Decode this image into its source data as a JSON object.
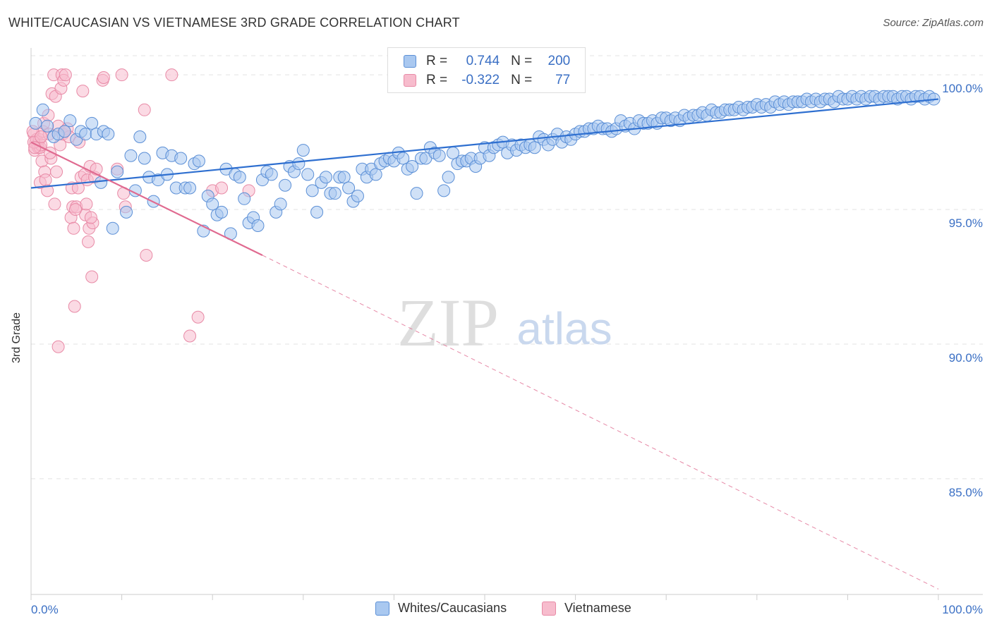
{
  "title": "WHITE/CAUCASIAN VS VIETNAMESE 3RD GRADE CORRELATION CHART",
  "source": "Source: ZipAtlas.com",
  "watermark": {
    "zip": "ZIP",
    "atlas": "atlas"
  },
  "legend": {
    "rows": [
      {
        "r_label": "R =",
        "r_value": "0.744",
        "n_label": "N =",
        "n_value": "200"
      },
      {
        "r_label": "R =",
        "r_value": "-0.322",
        "n_label": "N =",
        "n_value": "77"
      }
    ]
  },
  "bottom_legend": [
    "Whites/Caucasians",
    "Vietnamese"
  ],
  "colors": {
    "blue_fill": "#a9c8f0",
    "blue_stroke": "#5b8fd6",
    "blue_line": "#2e6fd0",
    "pink_fill": "#f7bccd",
    "pink_stroke": "#e88aa6",
    "pink_line": "#e06a90",
    "axis_text": "#3a6fc4",
    "grid": "#e3e3e3"
  },
  "chart_data": {
    "type": "scatter",
    "title": "WHITE/CAUCASIAN VS VIETNAMESE 3RD GRADE CORRELATION CHART",
    "xlabel": "",
    "ylabel": "3rd Grade",
    "xlim": [
      0,
      100
    ],
    "ylim": [
      80.7,
      101.0
    ],
    "x_tick_labels": [
      "0.0%",
      "100.0%"
    ],
    "y_ticks": [
      85,
      90,
      95,
      100
    ],
    "y_tick_labels": [
      "85.0%",
      "90.0%",
      "95.0%",
      "100.0%"
    ],
    "grid": true,
    "series": [
      {
        "name": "Whites/Caucasians",
        "r": 0.744,
        "n": 200,
        "trend": {
          "x": [
            0,
            100
          ],
          "y": [
            95.8,
            99.1
          ],
          "dashed_to": null
        },
        "points": [
          [
            0.5,
            98.2
          ],
          [
            1.3,
            98.7
          ],
          [
            1.8,
            98.1
          ],
          [
            2.5,
            97.7
          ],
          [
            3.0,
            97.8
          ],
          [
            3.7,
            97.9
          ],
          [
            4.3,
            98.3
          ],
          [
            5.0,
            97.6
          ],
          [
            5.5,
            97.9
          ],
          [
            6.0,
            97.8
          ],
          [
            6.7,
            98.2
          ],
          [
            7.2,
            97.8
          ],
          [
            8.0,
            97.9
          ],
          [
            8.5,
            97.8
          ],
          [
            7.7,
            96.0
          ],
          [
            9.0,
            94.3
          ],
          [
            9.5,
            96.4
          ],
          [
            10.5,
            94.9
          ],
          [
            11.0,
            97.0
          ],
          [
            11.5,
            95.7
          ],
          [
            12.0,
            97.7
          ],
          [
            12.5,
            96.9
          ],
          [
            13.0,
            96.2
          ],
          [
            13.5,
            95.3
          ],
          [
            14.0,
            96.1
          ],
          [
            14.5,
            97.1
          ],
          [
            15.0,
            96.3
          ],
          [
            15.5,
            97.0
          ],
          [
            16.0,
            95.8
          ],
          [
            16.5,
            96.9
          ],
          [
            17.0,
            95.8
          ],
          [
            17.5,
            95.8
          ],
          [
            18.0,
            96.7
          ],
          [
            18.5,
            96.8
          ],
          [
            19.0,
            94.2
          ],
          [
            19.5,
            95.5
          ],
          [
            20.0,
            95.2
          ],
          [
            20.5,
            94.8
          ],
          [
            21.0,
            94.9
          ],
          [
            21.5,
            96.5
          ],
          [
            22.0,
            94.1
          ],
          [
            22.5,
            96.3
          ],
          [
            23.0,
            96.2
          ],
          [
            23.5,
            95.4
          ],
          [
            24.0,
            94.5
          ],
          [
            24.5,
            94.7
          ],
          [
            25.0,
            94.4
          ],
          [
            25.5,
            96.1
          ],
          [
            26.0,
            96.4
          ],
          [
            26.5,
            96.3
          ],
          [
            27.0,
            94.9
          ],
          [
            27.5,
            95.2
          ],
          [
            28.0,
            95.9
          ],
          [
            28.5,
            96.6
          ],
          [
            29.0,
            96.4
          ],
          [
            29.5,
            96.7
          ],
          [
            30.0,
            97.2
          ],
          [
            30.5,
            96.3
          ],
          [
            31.0,
            95.7
          ],
          [
            31.5,
            94.9
          ],
          [
            32.0,
            96.0
          ],
          [
            32.5,
            96.2
          ],
          [
            33.0,
            95.6
          ],
          [
            33.5,
            95.6
          ],
          [
            34.0,
            96.2
          ],
          [
            34.5,
            96.2
          ],
          [
            35.0,
            95.8
          ],
          [
            35.5,
            95.3
          ],
          [
            36.0,
            95.5
          ],
          [
            36.5,
            96.5
          ],
          [
            37.0,
            96.2
          ],
          [
            37.5,
            96.5
          ],
          [
            38.0,
            96.3
          ],
          [
            38.5,
            96.7
          ],
          [
            39.0,
            96.8
          ],
          [
            39.5,
            96.9
          ],
          [
            40.0,
            96.8
          ],
          [
            40.5,
            97.1
          ],
          [
            41.0,
            96.9
          ],
          [
            41.5,
            96.5
          ],
          [
            42.0,
            96.6
          ],
          [
            42.5,
            95.6
          ],
          [
            43.0,
            96.9
          ],
          [
            43.5,
            96.9
          ],
          [
            44.0,
            97.3
          ],
          [
            44.5,
            97.1
          ],
          [
            45.0,
            97.0
          ],
          [
            45.5,
            95.7
          ],
          [
            46.0,
            96.2
          ],
          [
            46.5,
            97.1
          ],
          [
            47.0,
            96.7
          ],
          [
            47.5,
            96.8
          ],
          [
            48.0,
            96.8
          ],
          [
            48.5,
            96.9
          ],
          [
            49.0,
            96.6
          ],
          [
            49.5,
            96.9
          ],
          [
            50.0,
            97.3
          ],
          [
            50.5,
            97.0
          ],
          [
            51.0,
            97.3
          ],
          [
            51.5,
            97.4
          ],
          [
            52.0,
            97.5
          ],
          [
            52.5,
            97.1
          ],
          [
            53.0,
            97.4
          ],
          [
            53.5,
            97.2
          ],
          [
            54.0,
            97.4
          ],
          [
            54.5,
            97.3
          ],
          [
            55.0,
            97.4
          ],
          [
            55.5,
            97.3
          ],
          [
            56.0,
            97.7
          ],
          [
            56.5,
            97.6
          ],
          [
            57.0,
            97.4
          ],
          [
            57.5,
            97.6
          ],
          [
            58.0,
            97.8
          ],
          [
            58.5,
            97.5
          ],
          [
            59.0,
            97.7
          ],
          [
            59.5,
            97.6
          ],
          [
            60.0,
            97.8
          ],
          [
            60.5,
            97.9
          ],
          [
            61.0,
            97.9
          ],
          [
            61.5,
            98.0
          ],
          [
            62.0,
            98.0
          ],
          [
            62.5,
            98.1
          ],
          [
            63.0,
            98.0
          ],
          [
            63.5,
            98.0
          ],
          [
            64.0,
            97.9
          ],
          [
            64.5,
            98.0
          ],
          [
            65.0,
            98.3
          ],
          [
            65.5,
            98.1
          ],
          [
            66.0,
            98.2
          ],
          [
            66.5,
            98.0
          ],
          [
            67.0,
            98.3
          ],
          [
            67.5,
            98.2
          ],
          [
            68.0,
            98.2
          ],
          [
            68.5,
            98.3
          ],
          [
            69.0,
            98.2
          ],
          [
            69.5,
            98.4
          ],
          [
            70.0,
            98.4
          ],
          [
            70.5,
            98.3
          ],
          [
            71.0,
            98.4
          ],
          [
            71.5,
            98.3
          ],
          [
            72.0,
            98.5
          ],
          [
            72.5,
            98.4
          ],
          [
            73.0,
            98.5
          ],
          [
            73.5,
            98.5
          ],
          [
            74.0,
            98.6
          ],
          [
            74.5,
            98.5
          ],
          [
            75.0,
            98.7
          ],
          [
            75.5,
            98.6
          ],
          [
            76.0,
            98.6
          ],
          [
            76.5,
            98.7
          ],
          [
            77.0,
            98.7
          ],
          [
            77.5,
            98.7
          ],
          [
            78.0,
            98.8
          ],
          [
            78.5,
            98.7
          ],
          [
            79.0,
            98.8
          ],
          [
            79.5,
            98.8
          ],
          [
            80.0,
            98.9
          ],
          [
            80.5,
            98.8
          ],
          [
            81.0,
            98.9
          ],
          [
            81.5,
            98.8
          ],
          [
            82.0,
            99.0
          ],
          [
            82.5,
            98.9
          ],
          [
            83.0,
            99.0
          ],
          [
            83.5,
            98.9
          ],
          [
            84.0,
            99.0
          ],
          [
            84.5,
            99.0
          ],
          [
            85.0,
            99.0
          ],
          [
            85.5,
            99.1
          ],
          [
            86.0,
            99.0
          ],
          [
            86.5,
            99.1
          ],
          [
            87.0,
            99.0
          ],
          [
            87.5,
            99.1
          ],
          [
            88.0,
            99.1
          ],
          [
            88.5,
            99.0
          ],
          [
            89.0,
            99.2
          ],
          [
            89.5,
            99.1
          ],
          [
            90.0,
            99.1
          ],
          [
            90.5,
            99.2
          ],
          [
            91.0,
            99.1
          ],
          [
            91.5,
            99.2
          ],
          [
            92.0,
            99.1
          ],
          [
            92.5,
            99.2
          ],
          [
            93.0,
            99.2
          ],
          [
            93.5,
            99.1
          ],
          [
            94.0,
            99.2
          ],
          [
            94.5,
            99.2
          ],
          [
            95.0,
            99.2
          ],
          [
            95.5,
            99.1
          ],
          [
            96.0,
            99.2
          ],
          [
            96.5,
            99.2
          ],
          [
            97.0,
            99.1
          ],
          [
            97.5,
            99.2
          ],
          [
            98.0,
            99.2
          ],
          [
            98.5,
            99.1
          ],
          [
            99.0,
            99.2
          ],
          [
            99.5,
            99.1
          ]
        ]
      },
      {
        "name": "Vietnamese",
        "r": -0.322,
        "n": 77,
        "trend": {
          "x": [
            0,
            25.5
          ],
          "y": [
            97.5,
            93.3
          ],
          "dashed_to": [
            100,
            80.9
          ]
        },
        "points": [
          [
            0.3,
            97.8
          ],
          [
            0.4,
            97.2
          ],
          [
            0.5,
            97.5
          ],
          [
            0.6,
            97.6
          ],
          [
            0.7,
            97.4
          ],
          [
            0.8,
            97.3
          ],
          [
            0.9,
            97.6
          ],
          [
            1.0,
            97.3
          ],
          [
            1.0,
            96.0
          ],
          [
            1.1,
            97.4
          ],
          [
            1.2,
            96.8
          ],
          [
            1.3,
            97.9
          ],
          [
            1.4,
            98.2
          ],
          [
            1.5,
            96.4
          ],
          [
            1.6,
            96.1
          ],
          [
            1.8,
            95.7
          ],
          [
            1.9,
            98.5
          ],
          [
            2.0,
            97.8
          ],
          [
            2.2,
            96.9
          ],
          [
            2.3,
            99.3
          ],
          [
            2.5,
            100.0
          ],
          [
            2.6,
            95.2
          ],
          [
            2.7,
            99.2
          ],
          [
            2.8,
            96.4
          ],
          [
            3.0,
            89.9
          ],
          [
            3.0,
            98.1
          ],
          [
            3.2,
            97.4
          ],
          [
            3.3,
            99.5
          ],
          [
            3.4,
            100.0
          ],
          [
            3.5,
            97.8
          ],
          [
            3.6,
            99.8
          ],
          [
            3.8,
            100.0
          ],
          [
            4.0,
            98.0
          ],
          [
            4.2,
            97.7
          ],
          [
            4.4,
            94.7
          ],
          [
            4.5,
            95.8
          ],
          [
            4.6,
            95.1
          ],
          [
            4.7,
            94.3
          ],
          [
            4.8,
            91.4
          ],
          [
            5.0,
            95.1
          ],
          [
            5.2,
            95.8
          ],
          [
            5.3,
            97.5
          ],
          [
            5.5,
            96.2
          ],
          [
            5.7,
            99.4
          ],
          [
            5.9,
            96.3
          ],
          [
            6.0,
            94.8
          ],
          [
            6.1,
            95.2
          ],
          [
            6.2,
            96.1
          ],
          [
            6.3,
            93.8
          ],
          [
            6.4,
            94.3
          ],
          [
            6.5,
            96.6
          ],
          [
            6.7,
            92.5
          ],
          [
            6.8,
            94.5
          ],
          [
            7.0,
            96.2
          ],
          [
            7.2,
            96.5
          ],
          [
            9.5,
            96.5
          ],
          [
            10.2,
            95.6
          ],
          [
            10.4,
            95.1
          ],
          [
            12.5,
            98.7
          ],
          [
            12.7,
            93.3
          ],
          [
            17.5,
            90.3
          ],
          [
            18.4,
            91.0
          ],
          [
            20.0,
            95.7
          ],
          [
            21.0,
            95.8
          ],
          [
            24.0,
            95.7
          ],
          [
            7.9,
            99.8
          ],
          [
            8.0,
            99.9
          ],
          [
            10.0,
            100.0
          ],
          [
            15.5,
            100.0
          ],
          [
            0.2,
            97.9
          ],
          [
            0.3,
            97.5
          ],
          [
            0.4,
            97.3
          ],
          [
            1.1,
            97.7
          ],
          [
            2.1,
            97.1
          ],
          [
            3.7,
            97.9
          ],
          [
            4.9,
            95.0
          ],
          [
            6.6,
            94.7
          ]
        ]
      }
    ]
  }
}
